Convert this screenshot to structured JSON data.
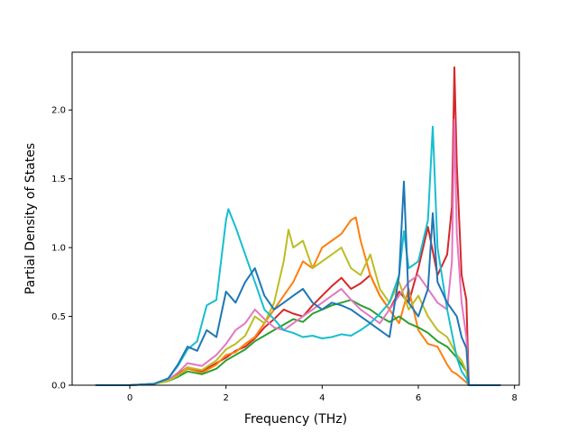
{
  "chart_data": {
    "type": "line",
    "title": "",
    "xlabel": "Frequency (THz)",
    "ylabel": "Partial Density of States",
    "xlim": [
      -1.2,
      8.1
    ],
    "ylim": [
      0,
      2.42
    ],
    "x_ticks": [
      {
        "value": 0,
        "label": "0"
      },
      {
        "value": 2,
        "label": "2"
      },
      {
        "value": 4,
        "label": "4"
      },
      {
        "value": 6,
        "label": "6"
      },
      {
        "value": 8,
        "label": "8"
      }
    ],
    "y_ticks": [
      {
        "value": 0.0,
        "label": "0.0"
      },
      {
        "value": 0.5,
        "label": "0.5"
      },
      {
        "value": 1.0,
        "label": "1.0"
      },
      {
        "value": 1.5,
        "label": "1.5"
      },
      {
        "value": 2.0,
        "label": "2.0"
      }
    ],
    "grid": false,
    "legend": "none",
    "series": [
      {
        "color": "#d62728",
        "x": [
          -0.7,
          0.0,
          0.5,
          0.8,
          1.0,
          1.2,
          1.5,
          1.8,
          2.0,
          2.2,
          2.4,
          2.6,
          2.8,
          3.0,
          3.2,
          3.4,
          3.6,
          3.8,
          4.0,
          4.2,
          4.4,
          4.6,
          4.8,
          5.0,
          5.2,
          5.4,
          5.6,
          5.8,
          6.0,
          6.2,
          6.4,
          6.6,
          6.7,
          6.75,
          6.8,
          6.9,
          7.0,
          7.05,
          7.7
        ],
        "y": [
          0,
          0,
          0.01,
          0.04,
          0.08,
          0.13,
          0.1,
          0.16,
          0.2,
          0.25,
          0.28,
          0.34,
          0.42,
          0.48,
          0.55,
          0.52,
          0.5,
          0.58,
          0.65,
          0.72,
          0.78,
          0.7,
          0.74,
          0.8,
          0.65,
          0.55,
          0.68,
          0.6,
          0.85,
          1.15,
          0.8,
          0.95,
          1.3,
          2.31,
          1.6,
          0.8,
          0.62,
          0.0,
          0.0
        ]
      },
      {
        "color": "#ff7f0e",
        "x": [
          -0.7,
          0.0,
          0.5,
          0.8,
          1.0,
          1.2,
          1.5,
          1.8,
          2.0,
          2.2,
          2.4,
          2.6,
          2.8,
          3.0,
          3.2,
          3.4,
          3.6,
          3.8,
          4.0,
          4.2,
          4.4,
          4.6,
          4.7,
          4.8,
          5.0,
          5.2,
          5.4,
          5.6,
          5.8,
          6.0,
          6.2,
          6.4,
          6.6,
          6.7,
          6.8,
          6.9,
          7.0,
          7.05,
          7.7
        ],
        "y": [
          0,
          0,
          0.01,
          0.03,
          0.07,
          0.12,
          0.09,
          0.15,
          0.22,
          0.24,
          0.3,
          0.35,
          0.45,
          0.55,
          0.65,
          0.75,
          0.9,
          0.85,
          1.0,
          1.05,
          1.1,
          1.2,
          1.22,
          1.05,
          0.8,
          0.65,
          0.55,
          0.45,
          0.7,
          0.4,
          0.3,
          0.28,
          0.15,
          0.1,
          0.08,
          0.05,
          0.02,
          0.0,
          0.0
        ]
      },
      {
        "color": "#2ca02c",
        "x": [
          -0.7,
          0.0,
          0.5,
          0.8,
          1.0,
          1.2,
          1.5,
          1.8,
          2.0,
          2.2,
          2.4,
          2.6,
          2.8,
          3.0,
          3.2,
          3.4,
          3.6,
          3.8,
          4.0,
          4.2,
          4.4,
          4.6,
          4.8,
          5.0,
          5.2,
          5.4,
          5.6,
          5.8,
          6.0,
          6.2,
          6.4,
          6.6,
          6.8,
          6.9,
          7.0,
          7.05,
          7.7
        ],
        "y": [
          0,
          0,
          0.01,
          0.03,
          0.06,
          0.1,
          0.08,
          0.12,
          0.18,
          0.22,
          0.26,
          0.32,
          0.36,
          0.4,
          0.44,
          0.48,
          0.46,
          0.52,
          0.55,
          0.58,
          0.6,
          0.62,
          0.58,
          0.55,
          0.5,
          0.46,
          0.5,
          0.45,
          0.42,
          0.38,
          0.32,
          0.28,
          0.2,
          0.15,
          0.1,
          0.0,
          0.0
        ]
      },
      {
        "color": "#e377c2",
        "x": [
          -0.7,
          0.0,
          0.5,
          0.8,
          1.0,
          1.2,
          1.5,
          1.8,
          2.0,
          2.2,
          2.4,
          2.6,
          2.8,
          3.0,
          3.2,
          3.4,
          3.6,
          3.8,
          4.0,
          4.2,
          4.4,
          4.6,
          4.8,
          5.0,
          5.2,
          5.4,
          5.6,
          5.8,
          6.0,
          6.2,
          6.4,
          6.6,
          6.7,
          6.75,
          6.8,
          6.9,
          7.0,
          7.05,
          7.7
        ],
        "y": [
          0,
          0,
          0.01,
          0.04,
          0.09,
          0.16,
          0.14,
          0.22,
          0.3,
          0.4,
          0.45,
          0.55,
          0.48,
          0.42,
          0.4,
          0.45,
          0.5,
          0.55,
          0.6,
          0.65,
          0.7,
          0.62,
          0.55,
          0.5,
          0.45,
          0.55,
          0.65,
          0.75,
          0.8,
          0.7,
          0.6,
          0.55,
          0.9,
          1.93,
          1.1,
          0.6,
          0.35,
          0.0,
          0.0
        ]
      },
      {
        "color": "#bcbd22",
        "x": [
          -0.7,
          0.0,
          0.5,
          0.8,
          1.0,
          1.2,
          1.5,
          1.8,
          2.0,
          2.2,
          2.4,
          2.6,
          2.8,
          3.0,
          3.2,
          3.3,
          3.4,
          3.6,
          3.8,
          4.0,
          4.2,
          4.4,
          4.6,
          4.8,
          5.0,
          5.2,
          5.4,
          5.6,
          5.8,
          6.0,
          6.2,
          6.4,
          6.6,
          6.8,
          6.9,
          7.0,
          7.05,
          7.7
        ],
        "y": [
          0,
          0,
          0.01,
          0.03,
          0.07,
          0.13,
          0.11,
          0.18,
          0.26,
          0.3,
          0.36,
          0.5,
          0.45,
          0.6,
          0.9,
          1.13,
          1.0,
          1.05,
          0.85,
          0.9,
          0.95,
          1.0,
          0.85,
          0.8,
          0.95,
          0.7,
          0.6,
          0.75,
          0.55,
          0.65,
          0.5,
          0.4,
          0.35,
          0.22,
          0.18,
          0.1,
          0.0,
          0.0
        ]
      },
      {
        "color": "#17becf",
        "x": [
          -0.7,
          0.0,
          0.5,
          0.8,
          1.0,
          1.2,
          1.4,
          1.6,
          1.8,
          2.0,
          2.05,
          2.2,
          2.4,
          2.6,
          2.8,
          3.0,
          3.2,
          3.4,
          3.6,
          3.8,
          4.0,
          4.2,
          4.4,
          4.6,
          4.8,
          5.0,
          5.2,
          5.4,
          5.6,
          5.7,
          5.8,
          6.0,
          6.2,
          6.3,
          6.4,
          6.6,
          6.8,
          6.9,
          7.0,
          7.05,
          7.7
        ],
        "y": [
          0,
          0,
          0.01,
          0.05,
          0.14,
          0.26,
          0.32,
          0.58,
          0.62,
          1.2,
          1.28,
          1.15,
          0.95,
          0.75,
          0.55,
          0.48,
          0.4,
          0.38,
          0.35,
          0.36,
          0.34,
          0.35,
          0.37,
          0.36,
          0.4,
          0.45,
          0.52,
          0.6,
          0.8,
          1.12,
          0.85,
          0.9,
          1.2,
          1.88,
          1.0,
          0.55,
          0.2,
          0.1,
          0.05,
          0.0,
          0.0
        ]
      },
      {
        "color": "#1f77b4",
        "x": [
          -0.7,
          0.0,
          0.5,
          0.8,
          1.0,
          1.2,
          1.4,
          1.6,
          1.8,
          2.0,
          2.2,
          2.4,
          2.6,
          2.8,
          3.0,
          3.2,
          3.4,
          3.6,
          3.8,
          4.0,
          4.2,
          4.4,
          4.6,
          4.8,
          5.0,
          5.2,
          5.4,
          5.6,
          5.7,
          5.8,
          6.0,
          6.2,
          6.3,
          6.4,
          6.6,
          6.8,
          6.9,
          7.0,
          7.05,
          7.7
        ],
        "y": [
          0,
          0,
          0.01,
          0.05,
          0.15,
          0.28,
          0.25,
          0.4,
          0.35,
          0.68,
          0.6,
          0.75,
          0.85,
          0.65,
          0.55,
          0.6,
          0.65,
          0.7,
          0.6,
          0.55,
          0.6,
          0.58,
          0.55,
          0.5,
          0.45,
          0.4,
          0.35,
          0.8,
          1.48,
          0.6,
          0.5,
          0.7,
          1.25,
          0.75,
          0.6,
          0.5,
          0.35,
          0.27,
          0.0,
          0.0
        ]
      }
    ]
  }
}
